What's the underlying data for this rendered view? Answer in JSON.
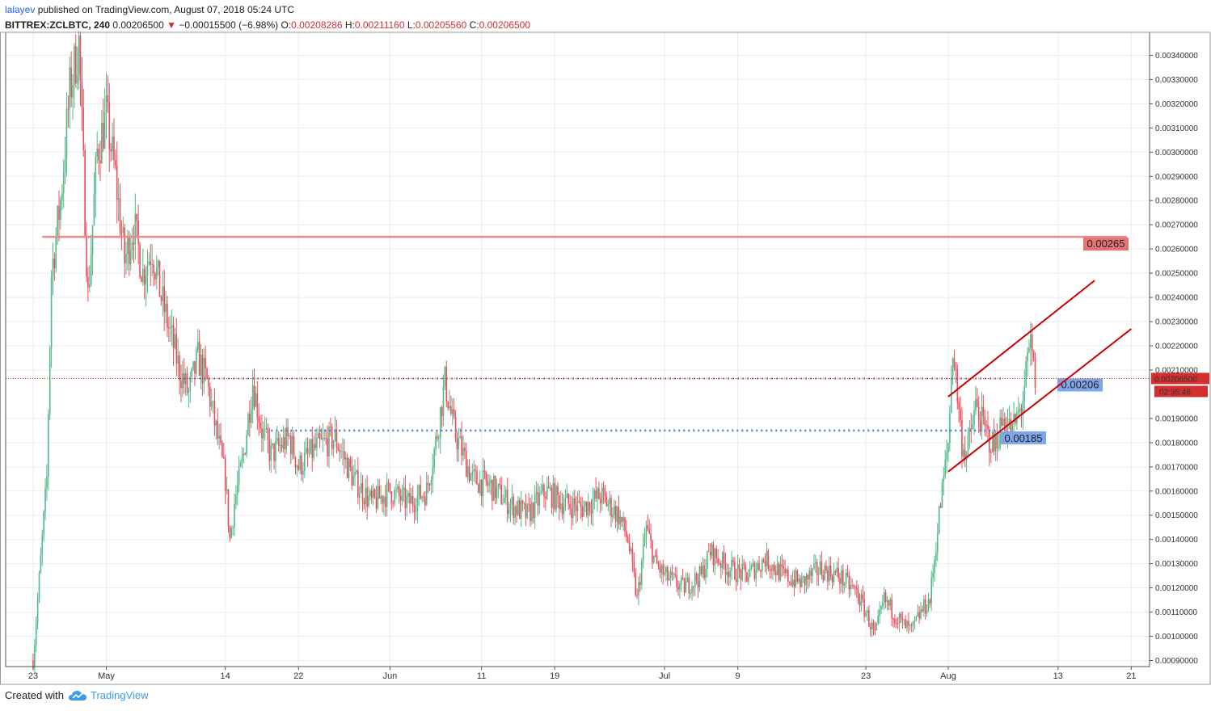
{
  "header": {
    "author": "lalayev",
    "published_text": "published on TradingView.com, August 07, 2018 05:24 UTC",
    "symbol": "BITTREX:ZCLBTC, 240",
    "last": "0.00206500",
    "change_arrow": "▼",
    "change": "−0.00015500 (−6.98%)",
    "open_label": "O:",
    "open": "0.00208286",
    "high_label": "H:",
    "high": "0.00211160",
    "low_label": "L:",
    "low": "0.00205560",
    "close_label": "C:",
    "close": "0.00206500"
  },
  "footer": {
    "created_with": "Created with",
    "brand": "TradingView",
    "brand_icon": "tradingview-cloud-icon"
  },
  "colors": {
    "up": "#53b987",
    "down": "#eb4d5c",
    "resistance": "#e88a8a",
    "support": "#4a7fd4",
    "channel": "#cc0000",
    "last_price": "#d32f2f"
  },
  "chart_data": {
    "type": "candlestick",
    "title": "",
    "xlabel": "",
    "ylabel": "",
    "x_range": [
      "2018-04-20",
      "2018-08-23"
    ],
    "ylim": [
      0.000875,
      0.003495
    ],
    "y_ticks": [
      "0.00340000",
      "0.00330000",
      "0.00320000",
      "0.00310000",
      "0.00300000",
      "0.00290000",
      "0.00280000",
      "0.00270000",
      "0.00260000",
      "0.00250000",
      "0.00240000",
      "0.00230000",
      "0.00220000",
      "0.00210000",
      "0.00190000",
      "0.00180000",
      "0.00170000",
      "0.00160000",
      "0.00150000",
      "0.00140000",
      "0.00130000",
      "0.00120000",
      "0.00110000",
      "0.00100000",
      "0.00090000"
    ],
    "y_tick_values": [
      0.0034,
      0.0033,
      0.0032,
      0.0031,
      0.003,
      0.0029,
      0.0028,
      0.0027,
      0.0026,
      0.0025,
      0.0024,
      0.0023,
      0.0022,
      0.0021,
      0.0019,
      0.0018,
      0.0017,
      0.0016,
      0.0015,
      0.0014,
      0.0013,
      0.0012,
      0.0011,
      0.001,
      0.0009
    ],
    "x_ticks": [
      {
        "label": "23",
        "date": "2018-04-23"
      },
      {
        "label": "May",
        "date": "2018-05-01"
      },
      {
        "label": "14",
        "date": "2018-05-14"
      },
      {
        "label": "22",
        "date": "2018-05-22"
      },
      {
        "label": "Jun",
        "date": "2018-06-01"
      },
      {
        "label": "11",
        "date": "2018-06-11"
      },
      {
        "label": "19",
        "date": "2018-06-19"
      },
      {
        "label": "Jul",
        "date": "2018-07-01"
      },
      {
        "label": "9",
        "date": "2018-07-09"
      },
      {
        "label": "23",
        "date": "2018-07-23"
      },
      {
        "label": "Aug",
        "date": "2018-08-01"
      },
      {
        "label": "13",
        "date": "2018-08-13"
      },
      {
        "label": "21",
        "date": "2018-08-21"
      }
    ],
    "grid": true,
    "price_path": [
      [
        "2018-04-23",
        0.0009
      ],
      [
        "2018-04-24",
        0.0014
      ],
      [
        "2018-04-24T12",
        0.00165
      ],
      [
        "2018-04-25",
        0.0025
      ],
      [
        "2018-04-26",
        0.0028
      ],
      [
        "2018-04-27",
        0.00325
      ],
      [
        "2018-04-28",
        0.00345
      ],
      [
        "2018-04-29",
        0.0024
      ],
      [
        "2018-04-30",
        0.003
      ],
      [
        "2018-05-01",
        0.00315
      ],
      [
        "2018-05-02",
        0.0029
      ],
      [
        "2018-05-03",
        0.00255
      ],
      [
        "2018-05-04",
        0.0027
      ],
      [
        "2018-05-05",
        0.0025
      ],
      [
        "2018-05-06",
        0.0026
      ],
      [
        "2018-05-07",
        0.0024
      ],
      [
        "2018-05-08",
        0.00225
      ],
      [
        "2018-05-09",
        0.0021
      ],
      [
        "2018-05-10",
        0.002
      ],
      [
        "2018-05-11",
        0.00215
      ],
      [
        "2018-05-12",
        0.00205
      ],
      [
        "2018-05-13",
        0.00185
      ],
      [
        "2018-05-14",
        0.00165
      ],
      [
        "2018-05-14T12",
        0.0014
      ],
      [
        "2018-05-15",
        0.00155
      ],
      [
        "2018-05-16",
        0.00175
      ],
      [
        "2018-05-17",
        0.00205
      ],
      [
        "2018-05-18",
        0.00185
      ],
      [
        "2018-05-19",
        0.00175
      ],
      [
        "2018-05-21",
        0.00182
      ],
      [
        "2018-05-22",
        0.0017
      ],
      [
        "2018-05-24",
        0.00178
      ],
      [
        "2018-05-26",
        0.00182
      ],
      [
        "2018-05-28",
        0.00165
      ],
      [
        "2018-05-30",
        0.00155
      ],
      [
        "2018-06-01",
        0.0016
      ],
      [
        "2018-06-03",
        0.00155
      ],
      [
        "2018-06-05",
        0.0016
      ],
      [
        "2018-06-06",
        0.0018
      ],
      [
        "2018-06-07",
        0.00205
      ],
      [
        "2018-06-08",
        0.00185
      ],
      [
        "2018-06-09",
        0.00175
      ],
      [
        "2018-06-10",
        0.00165
      ],
      [
        "2018-06-12",
        0.00162
      ],
      [
        "2018-06-14",
        0.00155
      ],
      [
        "2018-06-16",
        0.0015
      ],
      [
        "2018-06-18",
        0.0016
      ],
      [
        "2018-06-20",
        0.00155
      ],
      [
        "2018-06-22",
        0.00153
      ],
      [
        "2018-06-24",
        0.00158
      ],
      [
        "2018-06-26",
        0.0015
      ],
      [
        "2018-06-27",
        0.0014
      ],
      [
        "2018-06-28",
        0.00115
      ],
      [
        "2018-06-29",
        0.00145
      ],
      [
        "2018-06-30",
        0.0013
      ],
      [
        "2018-07-01",
        0.00125
      ],
      [
        "2018-07-03",
        0.0012
      ],
      [
        "2018-07-05",
        0.00125
      ],
      [
        "2018-07-06",
        0.00135
      ],
      [
        "2018-07-08",
        0.00128
      ],
      [
        "2018-07-10",
        0.00125
      ],
      [
        "2018-07-12",
        0.00132
      ],
      [
        "2018-07-14",
        0.00125
      ],
      [
        "2018-07-16",
        0.00122
      ],
      [
        "2018-07-18",
        0.00128
      ],
      [
        "2018-07-20",
        0.00125
      ],
      [
        "2018-07-22",
        0.00118
      ],
      [
        "2018-07-23",
        0.0011
      ],
      [
        "2018-07-24",
        0.001
      ],
      [
        "2018-07-25",
        0.00115
      ],
      [
        "2018-07-26",
        0.0011
      ],
      [
        "2018-07-27",
        0.00105
      ],
      [
        "2018-07-28",
        0.00102
      ],
      [
        "2018-07-29",
        0.0011
      ],
      [
        "2018-07-30",
        0.00115
      ],
      [
        "2018-07-31",
        0.0015
      ],
      [
        "2018-08-01",
        0.0018
      ],
      [
        "2018-08-01T12",
        0.0022
      ],
      [
        "2018-08-02",
        0.002
      ],
      [
        "2018-08-02T12",
        0.0018
      ],
      [
        "2018-08-03",
        0.00175
      ],
      [
        "2018-08-04",
        0.00195
      ],
      [
        "2018-08-05",
        0.00185
      ],
      [
        "2018-08-06",
        0.00178
      ],
      [
        "2018-08-07",
        0.0019
      ],
      [
        "2018-08-08",
        0.00185
      ],
      [
        "2018-08-09",
        0.00195
      ],
      [
        "2018-08-10",
        0.0022
      ],
      [
        "2018-08-10T12",
        0.00206
      ]
    ],
    "annotations": [
      {
        "type": "hline",
        "name": "resistance",
        "value": 0.00265,
        "label": "0.00265",
        "from": "2018-04-24"
      },
      {
        "type": "hline",
        "name": "level",
        "value": 0.002065,
        "label": "0.00206",
        "from": "2018-05-09"
      },
      {
        "type": "hline",
        "name": "support",
        "value": 0.00185,
        "label": "0.00185",
        "from": "2018-05-19"
      },
      {
        "type": "trendline",
        "name": "channel-upper",
        "from": [
          "2018-08-01",
          0.00199
        ],
        "to": [
          "2018-08-17",
          0.00247
        ]
      },
      {
        "type": "trendline",
        "name": "channel-lower",
        "from": [
          "2018-08-01",
          0.00168
        ],
        "to": [
          "2018-08-21",
          0.00227
        ]
      }
    ],
    "last_price_label": "0.00206500",
    "countdown_label": "02:35:46"
  }
}
